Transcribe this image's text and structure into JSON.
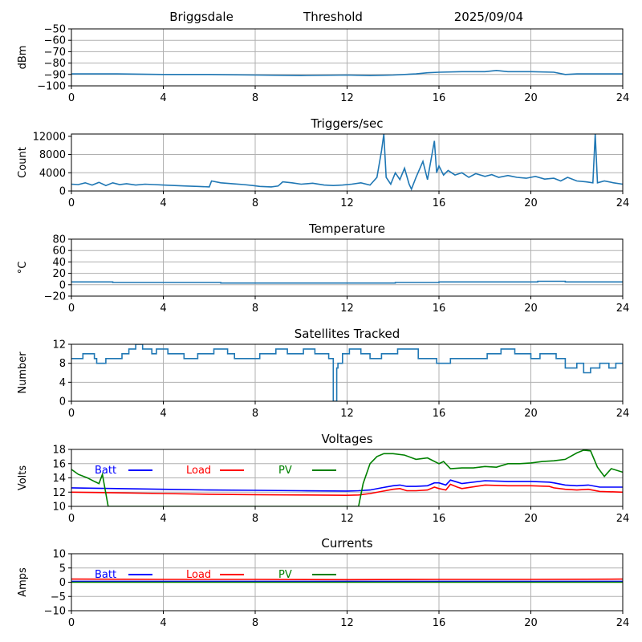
{
  "header": {
    "station": "Briggsdale",
    "mode": "Threshold",
    "date": "2025/09/04"
  },
  "chart_data": [
    {
      "id": "signal",
      "type": "line",
      "title": "",
      "ylabel": "dBm",
      "xlim": [
        0,
        24
      ],
      "ylim": [
        -100,
        -50
      ],
      "xticks": [
        0,
        4,
        8,
        12,
        16,
        20,
        24
      ],
      "yticks": [
        -100,
        -90,
        -80,
        -70,
        -60,
        -50
      ],
      "grid": true,
      "series": [
        {
          "color": "#1f77b4",
          "x": [
            0,
            2,
            4,
            6,
            8,
            10,
            12,
            13,
            14,
            15,
            15.5,
            16,
            17,
            18,
            18.5,
            19,
            20,
            21,
            21.5,
            22,
            23,
            24
          ],
          "y": [
            -89.5,
            -89.5,
            -90,
            -90,
            -90.5,
            -91,
            -90.5,
            -91,
            -90.5,
            -89.5,
            -88.5,
            -88,
            -87.5,
            -87.5,
            -86.5,
            -87.5,
            -87.5,
            -88,
            -90,
            -89.5,
            -89.5,
            -89.5
          ]
        }
      ]
    },
    {
      "id": "triggers",
      "type": "line",
      "title": "Triggers/sec",
      "ylabel": "Count",
      "xlim": [
        0,
        24
      ],
      "ylim": [
        0,
        12500
      ],
      "xticks": [
        0,
        4,
        8,
        12,
        16,
        20,
        24
      ],
      "yticks": [
        0,
        4000,
        8000,
        12000
      ],
      "grid": true,
      "series": [
        {
          "color": "#1f77b4",
          "x": [
            0,
            0.3,
            0.6,
            0.9,
            1.2,
            1.5,
            1.8,
            2.1,
            2.4,
            2.8,
            3.2,
            3.6,
            4,
            4.5,
            5,
            5.5,
            6,
            6.1,
            6.5,
            7,
            7.5,
            7.9,
            8.2,
            8.7,
            9,
            9.2,
            9.6,
            10,
            10.5,
            11,
            11.4,
            11.8,
            12.2,
            12.6,
            13,
            13.3,
            13.5,
            13.6,
            13.7,
            13.9,
            14.1,
            14.3,
            14.5,
            14.7,
            14.8,
            15,
            15.3,
            15.5,
            15.8,
            15.9,
            16,
            16.2,
            16.4,
            16.7,
            17,
            17.3,
            17.6,
            18,
            18.3,
            18.6,
            19,
            19.4,
            19.8,
            20.2,
            20.6,
            21,
            21.3,
            21.6,
            22,
            22.4,
            22.7,
            22.8,
            22.9,
            23.2,
            23.6,
            24
          ],
          "y": [
            1500,
            1400,
            1800,
            1300,
            1900,
            1200,
            1800,
            1400,
            1600,
            1300,
            1500,
            1400,
            1300,
            1200,
            1100,
            1000,
            900,
            2200,
            1800,
            1600,
            1400,
            1200,
            1000,
            900,
            1100,
            2000,
            1800,
            1500,
            1700,
            1300,
            1200,
            1300,
            1500,
            1800,
            1300,
            3000,
            8800,
            12500,
            3000,
            1500,
            4000,
            2500,
            5000,
            1500,
            400,
            3000,
            6500,
            2500,
            11000,
            4000,
            5500,
            3500,
            4500,
            3500,
            4000,
            3000,
            3800,
            3200,
            3600,
            3000,
            3400,
            3000,
            2800,
            3200,
            2600,
            2800,
            2200,
            3000,
            2200,
            2000,
            1800,
            12500,
            1800,
            2200,
            1800,
            1500
          ]
        }
      ]
    },
    {
      "id": "temperature",
      "type": "line",
      "title": "Temperature",
      "ylabel": "°C",
      "xlim": [
        0,
        24
      ],
      "ylim": [
        -20,
        80
      ],
      "xticks": [
        0,
        4,
        8,
        12,
        16,
        20,
        24
      ],
      "yticks": [
        -20,
        0,
        20,
        40,
        60,
        80
      ],
      "grid": true,
      "series": [
        {
          "color": "#1f77b4",
          "x": [
            0,
            1.8,
            1.8,
            6.5,
            6.5,
            14.1,
            14.1,
            16,
            16,
            20.3,
            20.3,
            21.5,
            21.5,
            24
          ],
          "y": [
            5,
            5,
            4,
            4,
            3,
            3,
            4,
            4,
            5,
            5,
            6,
            6,
            5,
            5
          ]
        }
      ]
    },
    {
      "id": "satellites",
      "type": "line",
      "title": "Satellites Tracked",
      "ylabel": "Number",
      "xlim": [
        0,
        24
      ],
      "ylim": [
        0,
        12
      ],
      "xticks": [
        0,
        4,
        8,
        12,
        16,
        20,
        24
      ],
      "yticks": [
        0,
        4,
        8,
        12
      ],
      "grid": true,
      "series": [
        {
          "color": "#1f77b4",
          "x": [
            0,
            0.5,
            0.5,
            1,
            1,
            1.1,
            1.1,
            1.5,
            1.5,
            2.2,
            2.2,
            2.5,
            2.5,
            2.8,
            2.8,
            3.1,
            3.1,
            3.5,
            3.5,
            3.7,
            3.7,
            4.2,
            4.2,
            4.9,
            4.9,
            5.5,
            5.5,
            6.2,
            6.2,
            6.8,
            6.8,
            7.1,
            7.1,
            8.2,
            8.2,
            8.9,
            8.9,
            9.4,
            9.4,
            10.1,
            10.1,
            10.6,
            10.6,
            11.2,
            11.2,
            11.4,
            11.4,
            11.55,
            11.55,
            11.6,
            11.6,
            11.8,
            11.8,
            12.1,
            12.1,
            12.6,
            12.6,
            13,
            13,
            13.5,
            13.5,
            14.2,
            14.2,
            15.1,
            15.1,
            15.9,
            15.9,
            16.5,
            16.5,
            17.2,
            17.2,
            18.1,
            18.1,
            18.7,
            18.7,
            19.3,
            19.3,
            20,
            20,
            20.4,
            20.4,
            21.1,
            21.1,
            21.5,
            21.5,
            22,
            22,
            22.3,
            22.3,
            22.6,
            22.6,
            23,
            23,
            23.4,
            23.4,
            23.7,
            23.7,
            24
          ],
          "y": [
            9,
            9,
            10,
            10,
            9,
            9,
            8,
            8,
            9,
            9,
            10,
            10,
            11,
            11,
            12,
            12,
            11,
            11,
            10,
            10,
            11,
            11,
            10,
            10,
            9,
            9,
            10,
            10,
            11,
            11,
            10,
            10,
            9,
            9,
            10,
            10,
            11,
            11,
            10,
            10,
            11,
            11,
            10,
            10,
            9,
            9,
            0,
            0,
            7,
            7,
            8,
            8,
            10,
            10,
            11,
            11,
            10,
            10,
            9,
            9,
            10,
            10,
            11,
            11,
            9,
            9,
            8,
            8,
            9,
            9,
            9,
            9,
            10,
            10,
            11,
            11,
            10,
            10,
            9,
            9,
            10,
            10,
            9,
            9,
            7,
            7,
            8,
            8,
            6,
            6,
            7,
            7,
            8,
            8,
            7,
            7,
            8,
            8
          ]
        }
      ]
    },
    {
      "id": "voltages",
      "type": "line",
      "title": "Voltages",
      "ylabel": "Volts",
      "xlim": [
        0,
        24
      ],
      "ylim": [
        10,
        18
      ],
      "xticks": [
        0,
        4,
        8,
        12,
        16,
        20,
        24
      ],
      "yticks": [
        10,
        12,
        14,
        16,
        18
      ],
      "grid": true,
      "legend": "top-left",
      "series": [
        {
          "name": "Batt",
          "color": "#0000ff",
          "x": [
            0,
            2,
            4,
            6,
            8,
            10,
            12,
            12.5,
            13,
            13.5,
            14,
            14.3,
            14.6,
            15,
            15.5,
            15.8,
            16,
            16.3,
            16.5,
            16.8,
            17,
            18,
            19,
            20,
            20.8,
            21,
            21.5,
            22,
            22.5,
            23,
            24
          ],
          "y": [
            12.6,
            12.5,
            12.4,
            12.3,
            12.25,
            12.2,
            12.15,
            12.2,
            12.3,
            12.6,
            12.9,
            13.0,
            12.8,
            12.8,
            12.9,
            13.3,
            13.3,
            13.0,
            13.7,
            13.4,
            13.2,
            13.6,
            13.5,
            13.5,
            13.4,
            13.3,
            13.0,
            12.9,
            13.0,
            12.7,
            12.7
          ]
        },
        {
          "name": "Load",
          "color": "#ff0000",
          "x": [
            0,
            2,
            4,
            6,
            8,
            10,
            12,
            12.5,
            13,
            13.5,
            14,
            14.3,
            14.6,
            15,
            15.5,
            15.8,
            16,
            16.3,
            16.5,
            16.8,
            17,
            18,
            19,
            20,
            20.8,
            21,
            21.5,
            22,
            22.5,
            23,
            24
          ],
          "y": [
            12.0,
            11.9,
            11.8,
            11.7,
            11.65,
            11.6,
            11.55,
            11.6,
            11.8,
            12.1,
            12.4,
            12.5,
            12.2,
            12.2,
            12.3,
            12.7,
            12.5,
            12.3,
            13.1,
            12.7,
            12.5,
            13.0,
            12.9,
            12.9,
            12.8,
            12.6,
            12.4,
            12.3,
            12.4,
            12.1,
            12.0
          ]
        },
        {
          "name": "PV",
          "color": "#008000",
          "x": [
            0,
            0.3,
            0.7,
            1,
            1.2,
            1.35,
            1.6,
            12.5,
            12.7,
            13,
            13.3,
            13.6,
            14,
            14.5,
            15,
            15.5,
            16,
            16.2,
            16.5,
            17,
            17.5,
            18,
            18.5,
            19,
            19.5,
            20,
            20.5,
            21,
            21.5,
            22,
            22.3,
            22.6,
            22.9,
            23.2,
            23.5,
            24
          ],
          "y": [
            15.2,
            14.5,
            14.0,
            13.5,
            13.2,
            14.5,
            10,
            10,
            13.2,
            16.0,
            17.0,
            17.4,
            17.4,
            17.2,
            16.6,
            16.8,
            16.0,
            16.3,
            15.3,
            15.4,
            15.4,
            15.6,
            15.5,
            16.0,
            16.0,
            16.1,
            16.3,
            16.4,
            16.6,
            17.5,
            17.9,
            17.8,
            15.5,
            14.2,
            15.3,
            14.8
          ]
        }
      ]
    },
    {
      "id": "currents",
      "type": "line",
      "title": "Currents",
      "ylabel": "Amps",
      "xlim": [
        0,
        24
      ],
      "ylim": [
        -10,
        10
      ],
      "xticks": [
        0,
        4,
        8,
        12,
        16,
        20,
        24
      ],
      "yticks": [
        -10,
        -5,
        0,
        5,
        10
      ],
      "grid": true,
      "legend": "top-left",
      "series": [
        {
          "name": "Batt",
          "color": "#0000ff",
          "x": [
            0,
            24
          ],
          "y": [
            0.3,
            0.3
          ]
        },
        {
          "name": "Load",
          "color": "#ff0000",
          "x": [
            0,
            4,
            8,
            12,
            16,
            20,
            24
          ],
          "y": [
            1.1,
            1.0,
            1.0,
            0.9,
            1.0,
            1.0,
            1.1
          ]
        },
        {
          "name": "PV",
          "color": "#008000",
          "x": [
            0,
            24
          ],
          "y": [
            0.0,
            0.0
          ]
        }
      ]
    }
  ]
}
